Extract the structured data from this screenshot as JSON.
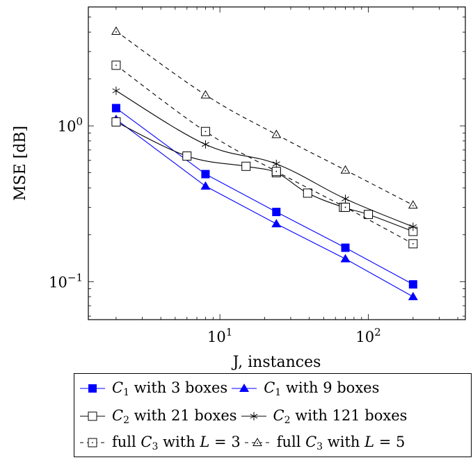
{
  "chart_data": {
    "type": "line",
    "xlabel": "J, instances",
    "ylabel": "MSE [dB]",
    "xscale": "log",
    "yscale": "log",
    "xlim": [
      1.3,
      450
    ],
    "ylim": [
      0.057,
      5.8
    ],
    "xticks": [
      {
        "value": 10,
        "base": "10",
        "exp": "1"
      },
      {
        "value": 100,
        "base": "10",
        "exp": "2"
      }
    ],
    "yticks": [
      {
        "value": 0.1,
        "base": "10",
        "exp": "−1"
      },
      {
        "value": 1,
        "base": "10",
        "exp": "0"
      }
    ],
    "grid": false,
    "legend_position": "below",
    "series": [
      {
        "name": "C1 with 3 boxes",
        "label": {
          "pre": "",
          "var": "C",
          "sub": "1",
          "post": " with 3 boxes"
        },
        "color": "#0000ff",
        "marker": "filled-square",
        "dash": "solid",
        "x": [
          2,
          8,
          24,
          70,
          200
        ],
        "y": [
          1.3,
          0.49,
          0.28,
          0.165,
          0.096
        ]
      },
      {
        "name": "C1 with 9 boxes",
        "label": {
          "pre": "",
          "var": "C",
          "sub": "1",
          "post": " with 9 boxes"
        },
        "color": "#0000ff",
        "marker": "filled-triangle",
        "dash": "solid",
        "x": [
          2,
          8,
          24,
          70,
          200
        ],
        "y": [
          1.1,
          0.41,
          0.235,
          0.14,
          0.08
        ]
      },
      {
        "name": "C2 with 21 boxes",
        "label": {
          "pre": "",
          "var": "C",
          "sub": "2",
          "post": " with 21 boxes"
        },
        "color": "#000000",
        "marker": "open-square",
        "dash": "solid",
        "x": [
          2,
          6,
          15,
          24,
          39,
          68,
          100,
          200
        ],
        "y": [
          1.06,
          0.64,
          0.55,
          0.5,
          0.37,
          0.3,
          0.27,
          0.21
        ]
      },
      {
        "name": "C2 with 121 boxes",
        "label": {
          "pre": "",
          "var": "C",
          "sub": "2",
          "post": " with 121 boxes"
        },
        "color": "#000000",
        "marker": "star",
        "dash": "solid",
        "x": [
          2,
          8,
          24,
          70,
          200
        ],
        "y": [
          1.68,
          0.76,
          0.57,
          0.34,
          0.225
        ]
      },
      {
        "name": "full C3 with L = 3",
        "label": {
          "pre": "full ",
          "var": "C",
          "sub": "3",
          "post": " with ",
          "var2": "L",
          "post2": " = 3"
        },
        "color": "#000000",
        "marker": "open-square-dot",
        "dash": "dashed",
        "x": [
          2,
          8,
          24,
          70,
          200
        ],
        "y": [
          2.45,
          0.92,
          0.51,
          0.3,
          0.175
        ]
      },
      {
        "name": "full C3 with L = 5",
        "label": {
          "pre": "full ",
          "var": "C",
          "sub": "3",
          "post": " with ",
          "var2": "L",
          "post2": " = 5"
        },
        "color": "#000000",
        "marker": "open-triangle-dot",
        "dash": "dashed",
        "x": [
          2,
          8,
          24,
          70,
          200
        ],
        "y": [
          4.05,
          1.58,
          0.88,
          0.52,
          0.31
        ]
      }
    ]
  }
}
